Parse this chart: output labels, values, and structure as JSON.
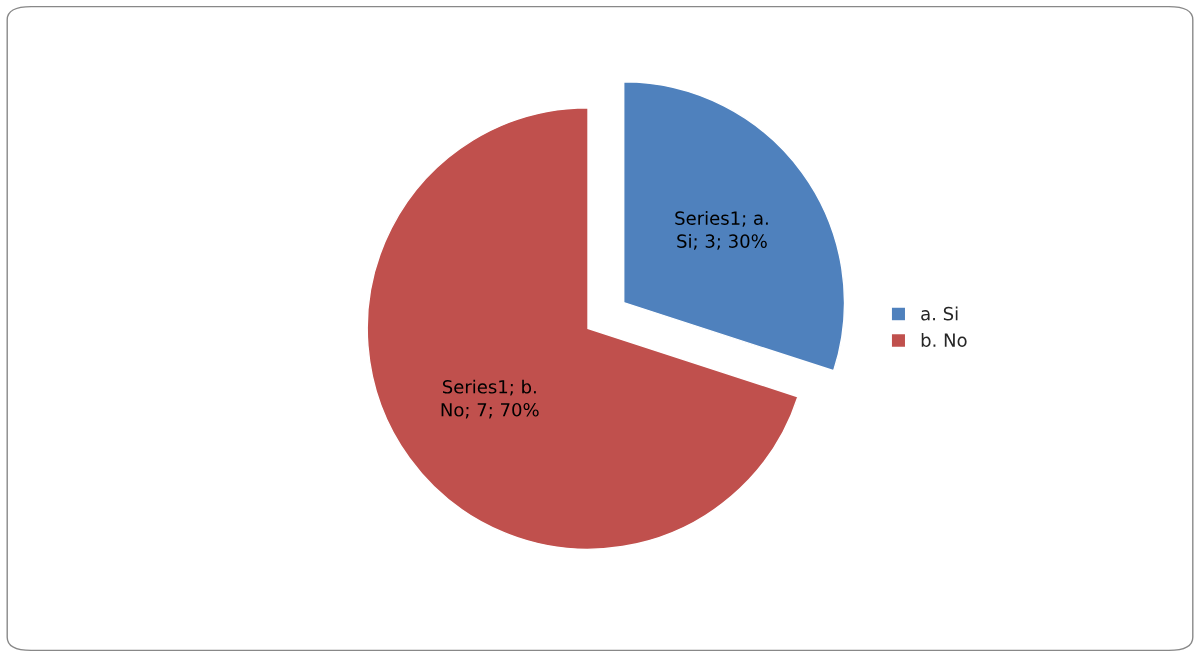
{
  "chart_data": {
    "type": "pie",
    "categories": [
      "a. Si",
      "b. No"
    ],
    "values": [
      3,
      7
    ],
    "colors": [
      "#4f81bd",
      "#c0504d"
    ],
    "value_labels": [
      "Series1; a. Si; 3; 30%",
      "Series1; b. No; 7; 70%"
    ],
    "legend": "right"
  }
}
